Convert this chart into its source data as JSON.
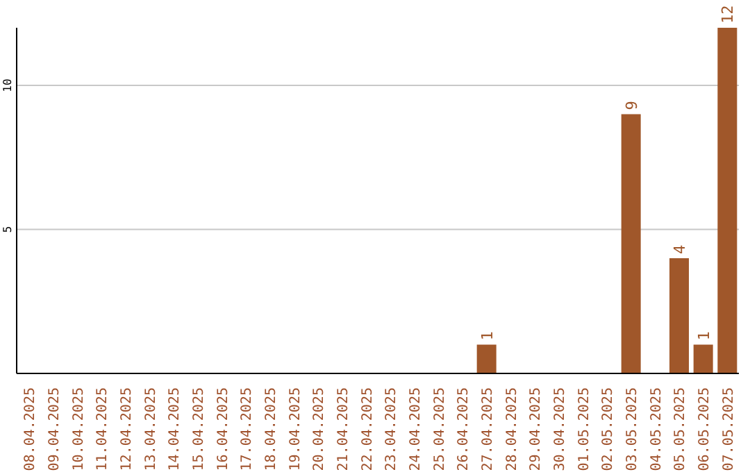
{
  "chart_data": {
    "type": "bar",
    "categories": [
      "08.04.2025",
      "09.04.2025",
      "10.04.2025",
      "11.04.2025",
      "12.04.2025",
      "13.04.2025",
      "14.04.2025",
      "15.04.2025",
      "16.04.2025",
      "17.04.2025",
      "18.04.2025",
      "19.04.2025",
      "20.04.2025",
      "21.04.2025",
      "22.04.2025",
      "23.04.2025",
      "24.04.2025",
      "25.04.2025",
      "26.04.2025",
      "27.04.2025",
      "28.04.2025",
      "29.04.2025",
      "30.04.2025",
      "01.05.2025",
      "02.05.2025",
      "03.05.2025",
      "04.05.2025",
      "05.05.2025",
      "06.05.2025",
      "07.05.2025"
    ],
    "values": [
      0,
      0,
      0,
      0,
      0,
      0,
      0,
      0,
      0,
      0,
      0,
      0,
      0,
      0,
      0,
      0,
      0,
      0,
      0,
      1,
      0,
      0,
      0,
      0,
      0,
      9,
      0,
      4,
      1,
      12
    ],
    "value_labels": [
      null,
      null,
      null,
      null,
      null,
      null,
      null,
      null,
      null,
      null,
      null,
      null,
      null,
      null,
      null,
      null,
      null,
      null,
      null,
      "1",
      null,
      null,
      null,
      null,
      null,
      "9",
      null,
      "4",
      "1",
      "12"
    ],
    "color": "#a0572a",
    "ylim": [
      0,
      12
    ],
    "yticks": [
      5,
      10
    ],
    "grid": "y"
  }
}
